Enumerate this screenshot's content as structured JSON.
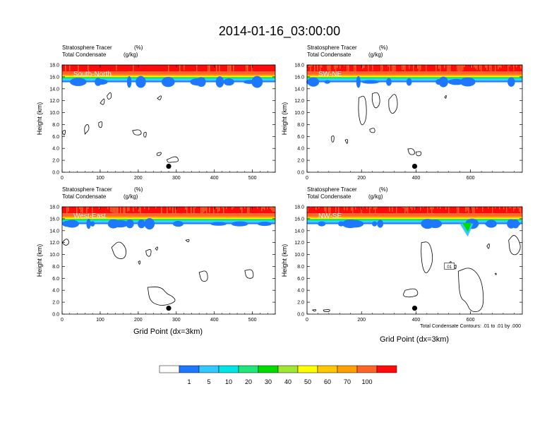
{
  "figure": {
    "title": "2014-01-16_03:00:00",
    "xlabel": "Grid Point (dx=3km)",
    "contour_note": "Total Condensate Contours: .01 to .01 by .000"
  },
  "colors": {
    "scale": [
      "#ffffff",
      "#1e78ff",
      "#33c8ff",
      "#00e6e6",
      "#1ee678",
      "#00dc00",
      "#a0e632",
      "#ffff00",
      "#ffc800",
      "#ffa000",
      "#ff6428",
      "#ff0a0a"
    ]
  },
  "colorbar": {
    "labels": [
      "1",
      "5",
      "10",
      "20",
      "30",
      "40",
      "50",
      "60",
      "70",
      "100"
    ]
  },
  "chart_data": [
    {
      "type": "heatmap",
      "name": "South-North",
      "subtitle_left": "Stratosphere Tracer",
      "subtitle_units": "(%)",
      "subtitle_left2": "Total Condensate",
      "subtitle_units2": "(g/kg)",
      "ylabel": "Height (km)",
      "xlim": [
        0,
        560
      ],
      "ylim": [
        0,
        18
      ],
      "xticks": [
        "0",
        "100",
        "200",
        "300",
        "400",
        "500"
      ],
      "yticks": [
        "0.0",
        "2.0",
        "4.0",
        "6.0",
        "8.0",
        "10.0",
        "12.0",
        "14.0",
        "16.0",
        "18.0"
      ],
      "tropopause_km": 16.0,
      "marker": {
        "x": 280,
        "y": 1.0
      }
    },
    {
      "type": "heatmap",
      "name": "SW-NE",
      "subtitle_left": "Stratosphere Tracer",
      "subtitle_units": "(%)",
      "subtitle_left2": "Total Condensate",
      "subtitle_units2": "(g/kg)",
      "ylabel": "Height (km)",
      "xlim": [
        0,
        790
      ],
      "ylim": [
        0,
        18
      ],
      "xticks": [
        "0",
        "200",
        "400",
        "600"
      ],
      "yticks": [
        "0.0",
        "2.0",
        "4.0",
        "6.0",
        "8.0",
        "10.0",
        "12.0",
        "14.0",
        "16.0",
        "18.0"
      ],
      "tropopause_km": 16.2,
      "marker": {
        "x": 395,
        "y": 1.0
      }
    },
    {
      "type": "heatmap",
      "name": "West-East",
      "subtitle_left": "Stratosphere Tracer",
      "subtitle_units": "(%)",
      "subtitle_left2": "Total Condensate",
      "subtitle_units2": "(g/kg)",
      "ylabel": "Height (km)",
      "xlim": [
        0,
        560
      ],
      "ylim": [
        0,
        18
      ],
      "xticks": [
        "0",
        "100",
        "200",
        "300",
        "400",
        "500"
      ],
      "yticks": [
        "0.0",
        "2.0",
        "4.0",
        "6.0",
        "8.0",
        "10.0",
        "12.0",
        "14.0",
        "16.0",
        "18.0"
      ],
      "tropopause_km": 16.0,
      "marker": {
        "x": 280,
        "y": 1.0
      }
    },
    {
      "type": "heatmap",
      "name": "NW-SE",
      "subtitle_left": "Stratosphere Tracer",
      "subtitle_units": "(%)",
      "subtitle_left2": "Total Condensate",
      "subtitle_units2": "(g/kg)",
      "ylabel": "Height (km)",
      "xlim": [
        0,
        790
      ],
      "ylim": [
        0,
        18
      ],
      "xticks": [
        "0",
        "200",
        "400",
        "600"
      ],
      "yticks": [
        "0.0",
        "2.0",
        "4.0",
        "6.0",
        "8.0",
        "10.0",
        "12.0",
        "14.0",
        "16.0",
        "18.0"
      ],
      "tropopause_km": 16.0,
      "marker": {
        "x": 395,
        "y": 1.0
      },
      "contour_label": "01"
    }
  ]
}
